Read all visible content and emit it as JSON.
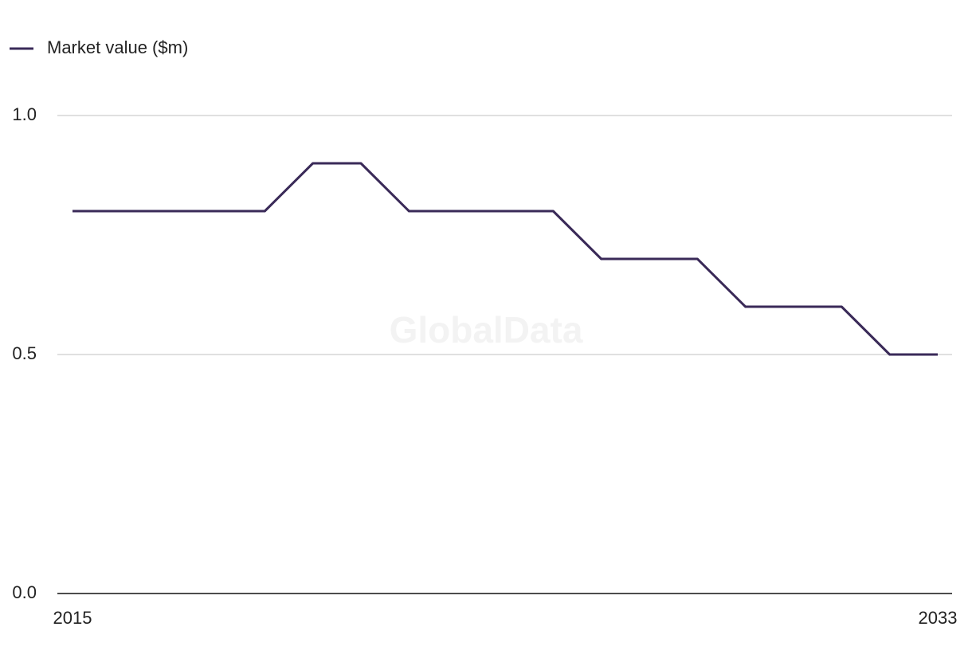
{
  "chart_data": {
    "type": "line",
    "watermark": "GlobalData",
    "x": [
      2015,
      2016,
      2017,
      2018,
      2019,
      2020,
      2021,
      2022,
      2023,
      2024,
      2025,
      2026,
      2027,
      2028,
      2029,
      2030,
      2031,
      2032,
      2033
    ],
    "series": [
      {
        "name": "Market value ($m)",
        "color": "#3a2a58",
        "values": [
          0.8,
          0.8,
          0.8,
          0.8,
          0.8,
          0.9,
          0.9,
          0.8,
          0.8,
          0.8,
          0.8,
          0.7,
          0.7,
          0.7,
          0.6,
          0.6,
          0.6,
          0.5,
          0.5
        ]
      }
    ],
    "xlim": [
      2015,
      2033
    ],
    "xticks": [
      2015,
      2033
    ],
    "ylim": [
      0,
      1
    ],
    "yticks": [
      {
        "value": 0,
        "label": "0.0"
      },
      0.5,
      {
        "value": 1,
        "label": "1.0"
      }
    ],
    "grid": true,
    "legend": "top-left"
  }
}
